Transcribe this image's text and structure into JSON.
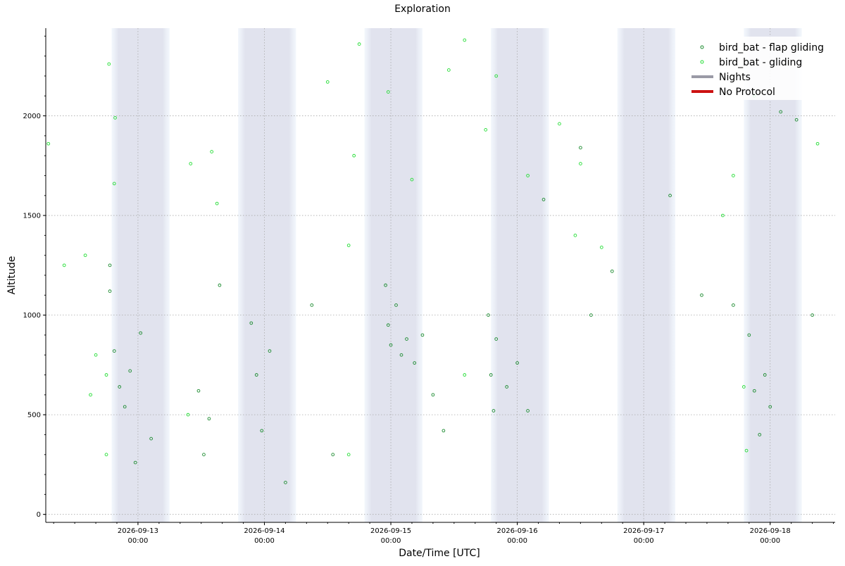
{
  "chart_data": {
    "type": "scatter",
    "title": "Exploration",
    "xlabel": "Date/Time [UTC]",
    "ylabel": "Altitude",
    "x_axis": {
      "type": "datetime",
      "range": [
        "2026-09-12T06:30:00Z",
        "2026-09-18T12:20:00Z"
      ],
      "ticks": [
        {
          "value": "2026-09-13T00:00:00Z",
          "label_date": "2026-09-13",
          "label_time": "00:00"
        },
        {
          "value": "2026-09-14T00:00:00Z",
          "label_date": "2026-09-14",
          "label_time": "00:00"
        },
        {
          "value": "2026-09-15T00:00:00Z",
          "label_date": "2026-09-15",
          "label_time": "00:00"
        },
        {
          "value": "2026-09-16T00:00:00Z",
          "label_date": "2026-09-16",
          "label_time": "00:00"
        },
        {
          "value": "2026-09-17T00:00:00Z",
          "label_date": "2026-09-17",
          "label_time": "00:00"
        },
        {
          "value": "2026-09-18T00:00:00Z",
          "label_date": "2026-09-18",
          "label_time": "00:00"
        }
      ]
    },
    "y_axis": {
      "range": [
        -40,
        2440
      ],
      "ticks": [
        0,
        500,
        1000,
        1500,
        2000
      ]
    },
    "grid": true,
    "legend_position": "top-right",
    "nights": [
      {
        "start": "2026-09-12T19:00:00Z",
        "end": "2026-09-13T06:00:00Z"
      },
      {
        "start": "2026-09-13T19:00:00Z",
        "end": "2026-09-14T06:00:00Z"
      },
      {
        "start": "2026-09-14T19:00:00Z",
        "end": "2026-09-15T06:00:00Z"
      },
      {
        "start": "2026-09-15T19:00:00Z",
        "end": "2026-09-16T06:00:00Z"
      },
      {
        "start": "2026-09-16T19:00:00Z",
        "end": "2026-09-17T06:00:00Z"
      },
      {
        "start": "2026-09-17T19:00:00Z",
        "end": "2026-09-18T06:00:00Z"
      }
    ],
    "legend": [
      {
        "label": "bird_bat - flap gliding",
        "kind": "marker",
        "color": "#1a8a2e"
      },
      {
        "label": "bird_bat - gliding",
        "kind": "marker",
        "color": "#22dd33"
      },
      {
        "label": "Nights",
        "kind": "line",
        "color": "#9a9aa6"
      },
      {
        "label": "No Protocol",
        "kind": "line",
        "color": "#cc1111"
      }
    ],
    "series": [
      {
        "name": "bird_bat - flap gliding",
        "color": "#1a8a2e",
        "points": [
          [
            "2026-09-12T19:30:00Z",
            820
          ],
          [
            "2026-09-12T20:30:00Z",
            640
          ],
          [
            "2026-09-12T21:30:00Z",
            540
          ],
          [
            "2026-09-12T22:30:00Z",
            720
          ],
          [
            "2026-09-12T23:30:00Z",
            260
          ],
          [
            "2026-09-13T00:30:00Z",
            910
          ],
          [
            "2026-09-13T02:30:00Z",
            380
          ],
          [
            "2026-09-12T18:40:00Z",
            1250
          ],
          [
            "2026-09-12T18:40:00Z",
            1120
          ],
          [
            "2026-09-13T11:30:00Z",
            620
          ],
          [
            "2026-09-13T12:30:00Z",
            300
          ],
          [
            "2026-09-13T13:30:00Z",
            480
          ],
          [
            "2026-09-13T15:30:00Z",
            1150
          ],
          [
            "2026-09-13T21:30:00Z",
            960
          ],
          [
            "2026-09-13T22:30:00Z",
            700
          ],
          [
            "2026-09-13T23:30:00Z",
            420
          ],
          [
            "2026-09-14T01:00:00Z",
            820
          ],
          [
            "2026-09-14T04:00:00Z",
            160
          ],
          [
            "2026-09-14T09:00:00Z",
            1050
          ],
          [
            "2026-09-14T13:00:00Z",
            300
          ],
          [
            "2026-09-14T23:00:00Z",
            1150
          ],
          [
            "2026-09-14T23:30:00Z",
            950
          ],
          [
            "2026-09-15T00:00:00Z",
            850
          ],
          [
            "2026-09-15T01:00:00Z",
            1050
          ],
          [
            "2026-09-15T02:00:00Z",
            800
          ],
          [
            "2026-09-15T03:00:00Z",
            880
          ],
          [
            "2026-09-15T04:30:00Z",
            760
          ],
          [
            "2026-09-15T06:00:00Z",
            900
          ],
          [
            "2026-09-15T08:00:00Z",
            600
          ],
          [
            "2026-09-15T10:00:00Z",
            420
          ],
          [
            "2026-09-15T18:30:00Z",
            1000
          ],
          [
            "2026-09-15T19:00:00Z",
            700
          ],
          [
            "2026-09-15T19:30:00Z",
            520
          ],
          [
            "2026-09-15T20:00:00Z",
            880
          ],
          [
            "2026-09-15T22:00:00Z",
            640
          ],
          [
            "2026-09-16T00:00:00Z",
            760
          ],
          [
            "2026-09-16T02:00:00Z",
            520
          ],
          [
            "2026-09-16T05:00:00Z",
            1580
          ],
          [
            "2026-09-16T12:00:00Z",
            1840
          ],
          [
            "2026-09-16T14:00:00Z",
            1000
          ],
          [
            "2026-09-16T18:00:00Z",
            1220
          ],
          [
            "2026-09-17T05:00:00Z",
            1600
          ],
          [
            "2026-09-17T11:00:00Z",
            1100
          ],
          [
            "2026-09-17T17:00:00Z",
            1050
          ],
          [
            "2026-09-17T20:00:00Z",
            900
          ],
          [
            "2026-09-17T21:00:00Z",
            620
          ],
          [
            "2026-09-17T22:00:00Z",
            400
          ],
          [
            "2026-09-17T23:00:00Z",
            700
          ],
          [
            "2026-09-18T00:00:00Z",
            540
          ],
          [
            "2026-09-18T02:00:00Z",
            2020
          ],
          [
            "2026-09-18T05:00:00Z",
            1980
          ],
          [
            "2026-09-18T08:00:00Z",
            1000
          ]
        ]
      },
      {
        "name": "bird_bat - gliding",
        "color": "#22dd33",
        "points": [
          [
            "2026-09-12T07:00:00Z",
            1860
          ],
          [
            "2026-09-12T10:00:00Z",
            1250
          ],
          [
            "2026-09-12T14:00:00Z",
            1300
          ],
          [
            "2026-09-12T15:00:00Z",
            600
          ],
          [
            "2026-09-12T16:00:00Z",
            800
          ],
          [
            "2026-09-12T18:30:00Z",
            2260
          ],
          [
            "2026-09-12T19:40:00Z",
            1990
          ],
          [
            "2026-09-12T19:30:00Z",
            1660
          ],
          [
            "2026-09-13T10:00:00Z",
            1760
          ],
          [
            "2026-09-13T14:00:00Z",
            1820
          ],
          [
            "2026-09-13T15:00:00Z",
            1560
          ],
          [
            "2026-09-14T12:00:00Z",
            2170
          ],
          [
            "2026-09-14T16:00:00Z",
            1350
          ],
          [
            "2026-09-14T17:00:00Z",
            1800
          ],
          [
            "2026-09-14T18:00:00Z",
            2360
          ],
          [
            "2026-09-14T23:30:00Z",
            2120
          ],
          [
            "2026-09-15T04:00:00Z",
            1680
          ],
          [
            "2026-09-15T11:00:00Z",
            2230
          ],
          [
            "2026-09-15T14:00:00Z",
            2380
          ],
          [
            "2026-09-15T18:00:00Z",
            1930
          ],
          [
            "2026-09-15T20:00:00Z",
            2200
          ],
          [
            "2026-09-16T02:00:00Z",
            1700
          ],
          [
            "2026-09-16T08:00:00Z",
            1960
          ],
          [
            "2026-09-16T11:00:00Z",
            1400
          ],
          [
            "2026-09-16T12:00:00Z",
            1760
          ],
          [
            "2026-09-16T16:00:00Z",
            1340
          ],
          [
            "2026-09-17T15:00:00Z",
            1500
          ],
          [
            "2026-09-17T17:00:00Z",
            1700
          ],
          [
            "2026-09-17T21:00:00Z",
            2100
          ],
          [
            "2026-09-18T09:00:00Z",
            1860
          ],
          [
            "2026-09-12T18:00:00Z",
            700
          ],
          [
            "2026-09-12T18:00:00Z",
            300
          ],
          [
            "2026-09-13T09:30:00Z",
            500
          ],
          [
            "2026-09-14T16:00:00Z",
            300
          ],
          [
            "2026-09-15T14:00:00Z",
            700
          ],
          [
            "2026-09-17T19:00:00Z",
            640
          ],
          [
            "2026-09-17T19:30:00Z",
            320
          ]
        ]
      }
    ]
  }
}
